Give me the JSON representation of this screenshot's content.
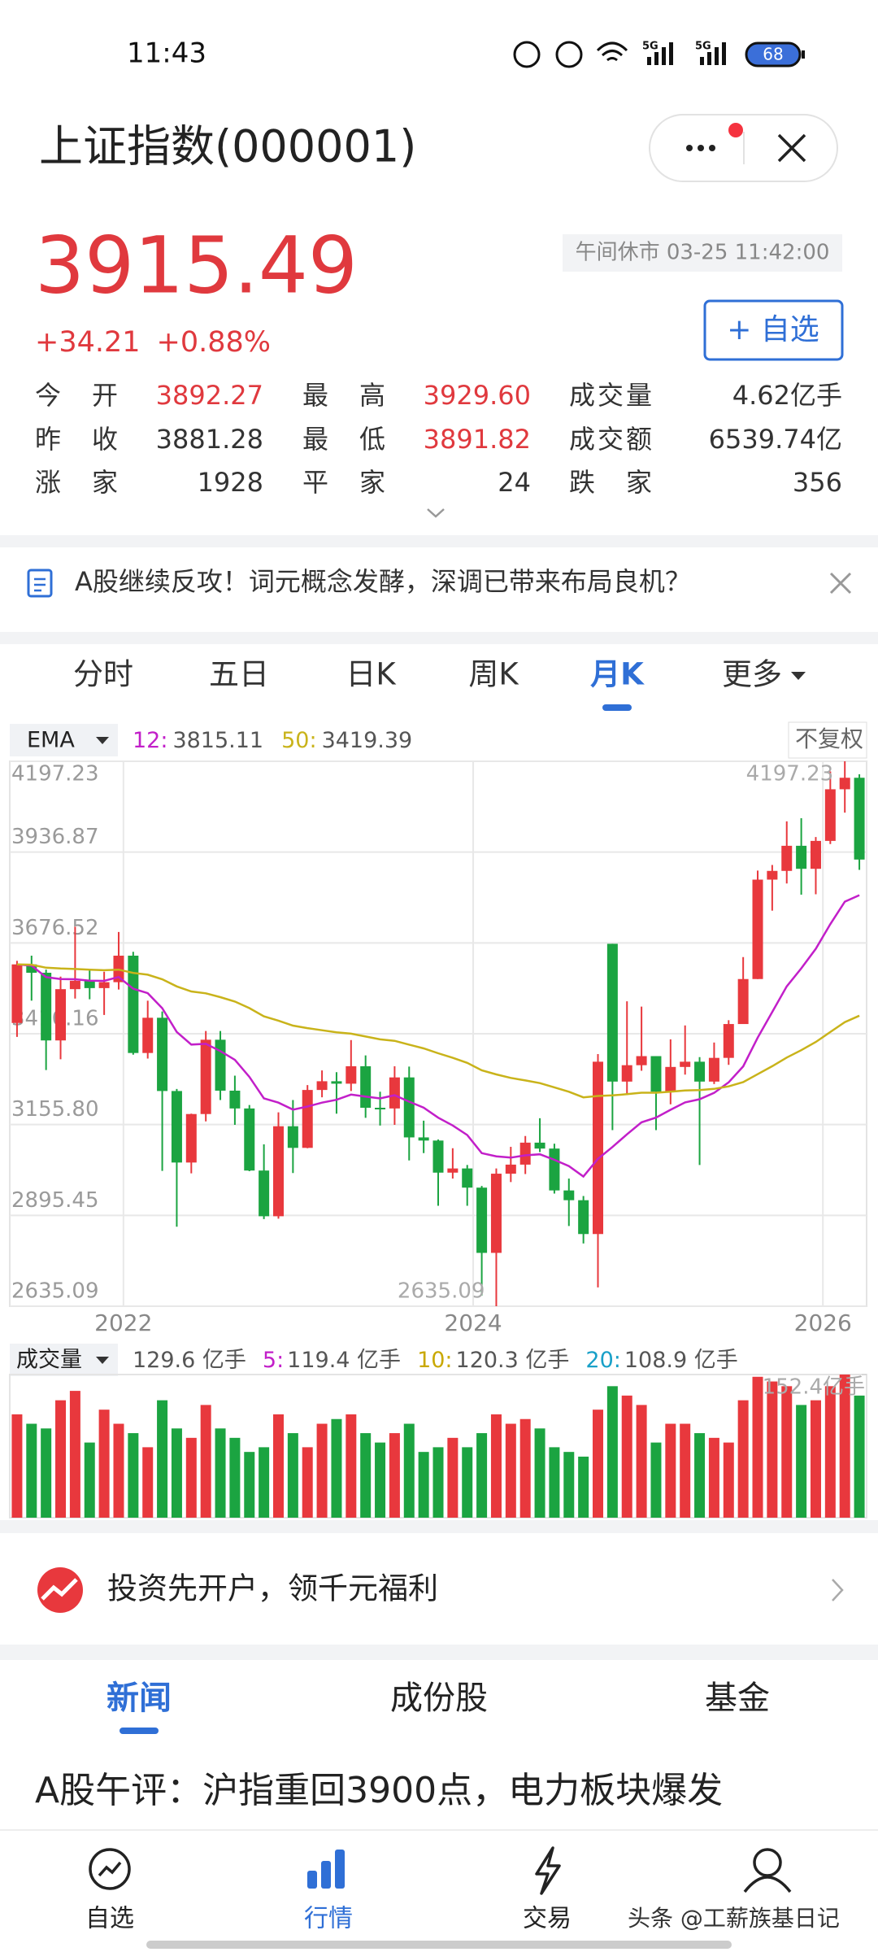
{
  "status_bar": {
    "time": "11:43",
    "network": [
      "5G",
      "5G"
    ],
    "battery": "68"
  },
  "header": {
    "title": "上证指数(000001)"
  },
  "quote": {
    "price": "3915.49",
    "change": "+34.21",
    "change_pct": "+0.88%",
    "market_status": "午间休市 03-25 11:42:00",
    "watch_button": "+ 自选",
    "up_color": "#e0393e"
  },
  "stats": [
    [
      {
        "label": "今开",
        "value": "3892.27",
        "up": true
      },
      {
        "label": "最高",
        "value": "3929.60",
        "up": true
      },
      {
        "label": "成交量",
        "value": "4.62亿手",
        "up": false
      }
    ],
    [
      {
        "label": "昨收",
        "value": "3881.28",
        "up": false
      },
      {
        "label": "最低",
        "value": "3891.82",
        "up": true
      },
      {
        "label": "成交额",
        "value": "6539.74亿",
        "up": false
      }
    ],
    [
      {
        "label": "涨家",
        "value": "1928",
        "up": false
      },
      {
        "label": "平家",
        "value": "24",
        "up": false
      },
      {
        "label": "跌家",
        "value": "356",
        "up": false
      }
    ]
  ],
  "news_banner": "A股继续反攻！词元概念发酵，深调已带来布局良机？",
  "tabs": {
    "items": [
      "分时",
      "五日",
      "日K",
      "周K",
      "月K",
      "更多"
    ],
    "active": 4
  },
  "chart_data": {
    "type": "candlestick",
    "indicator": "EMA",
    "adjust": "不复权",
    "ema": [
      {
        "name": "12:",
        "value": 3815.11,
        "color": "#c21fc9"
      },
      {
        "name": "50:",
        "value": 3419.39,
        "color": "#c9b31a"
      }
    ],
    "up_color": "#e8383d",
    "down_color": "#1ba441",
    "open": [
      3447,
      3615,
      3591,
      3397,
      3544,
      3568,
      3547,
      3564,
      3640,
      3361,
      3462,
      3252,
      3047,
      3186,
      3399,
      3253,
      3202,
      3024,
      2893,
      3151,
      3089,
      3255,
      3280,
      3273,
      3323,
      3204,
      3202,
      3291,
      3119,
      3110,
      3018,
      3030,
      2975,
      2788,
      3015,
      3041,
      3104,
      3087,
      2967,
      2939,
      2842,
      3674,
      3279,
      3326,
      3352,
      3250,
      3321,
      3336,
      3279,
      3347,
      3444,
      3573,
      3858,
      3883,
      3955,
      3889,
      3969,
      4117,
      4150
    ],
    "high": [
      3625,
      3640,
      3600,
      3580,
      3723,
      3600,
      3594,
      3708,
      3651,
      3511,
      3480,
      3258,
      3187,
      3424,
      3424,
      3296,
      3212,
      3099,
      3191,
      3226,
      3269,
      3311,
      3306,
      3398,
      3354,
      3250,
      3323,
      3322,
      3167,
      3113,
      3088,
      3040,
      2980,
      3030,
      3092,
      3123,
      3174,
      3101,
      3001,
      2951,
      3358,
      3674,
      3509,
      3494,
      3352,
      3400,
      3440,
      3349,
      3391,
      3455,
      3636,
      3884,
      3900,
      4025,
      4034,
      3980,
      4168,
      4197.23,
      4160
    ],
    "low": [
      3407,
      3511,
      3312,
      3343,
      3517,
      3515,
      3470,
      3543,
      3356,
      3345,
      3023,
      2863,
      3016,
      3165,
      3226,
      3155,
      3022,
      2885,
      2886,
      3017,
      3088,
      3234,
      3187,
      3252,
      3175,
      3153,
      3155,
      3053,
      3074,
      2923,
      3001,
      2923,
      2666,
      2635.09,
      2991,
      3014,
      3077,
      2958,
      2865,
      2815,
      2689,
      3140,
      3240,
      3310,
      3140,
      3214,
      3299,
      3040,
      3272,
      3327,
      3444,
      3573,
      3769,
      3847,
      3815,
      3816,
      3960,
      4050,
      3886
    ],
    "close": [
      3615,
      3591,
      3397,
      3544,
      3568,
      3547,
      3564,
      3640,
      3361,
      3462,
      3252,
      3047,
      3186,
      3399,
      3253,
      3202,
      3024,
      2893,
      3151,
      3089,
      3255,
      3280,
      3273,
      3323,
      3204,
      3202,
      3291,
      3119,
      3110,
      3018,
      3030,
      2975,
      2788,
      3015,
      3041,
      3104,
      3087,
      2967,
      2939,
      2842,
      3336,
      3279,
      3326,
      3352,
      3250,
      3321,
      3336,
      3279,
      3347,
      3444,
      3573,
      3858,
      3883,
      3955,
      3889,
      3969,
      4117,
      4150,
      3915.49
    ],
    "ylim": [
      2635.09,
      4197.23
    ],
    "yticks": [
      4197.23,
      3936.87,
      3676.52,
      3416.16,
      {
        "value": 3155.8,
        "label": "3155.80"
      },
      2895.45,
      2635.09
    ],
    "xlim": [
      2021.35,
      2026.25
    ],
    "xticks": [
      2022,
      2024,
      2026
    ],
    "annotations": [
      4197.23,
      2635.09
    ],
    "grid": true,
    "volume": {
      "label": "成交量",
      "total": "129.6 亿手",
      "ma": [
        {
          "name": "5:",
          "value": "119.4 亿手",
          "color": "#c21fc9"
        },
        {
          "name": "10:",
          "value": "120.3 亿手",
          "color": "#c9a800"
        },
        {
          "name": "20:",
          "value": "108.9 亿手",
          "color": "#18a0c8"
        }
      ],
      "values": [
        110,
        100,
        95,
        125,
        135,
        80,
        115,
        100,
        90,
        75,
        125,
        95,
        85,
        120,
        95,
        85,
        70,
        75,
        110,
        90,
        75,
        100,
        105,
        110,
        90,
        80,
        90,
        100,
        70,
        75,
        85,
        75,
        90,
        110,
        100,
        105,
        95,
        75,
        70,
        65,
        115,
        140,
        130,
        120,
        80,
        100,
        100,
        90,
        85,
        80,
        125,
        150,
        145,
        140,
        120,
        125,
        140,
        152.4,
        130
      ],
      "ylim": [
        0,
        152.4
      ],
      "yticks": [
        {
          "value": 152.4,
          "label": "152.4亿手"
        }
      ]
    }
  },
  "promo": "投资先开户，领千元福利",
  "bottom_tabs": {
    "items": [
      "新闻",
      "成份股",
      "基金"
    ],
    "active": 0
  },
  "headline": "A股午评：沪指重回3900点，电力板块爆发",
  "nav": {
    "items": [
      "自选",
      "行情",
      "交易"
    ],
    "active": 1
  },
  "watermark": "头条 @工薪族基日记"
}
